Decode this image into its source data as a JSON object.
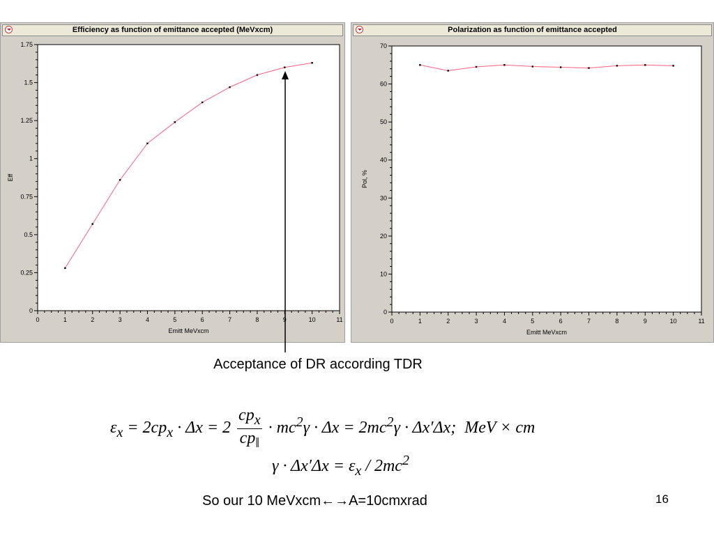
{
  "chart_data": [
    {
      "type": "line",
      "title": "Efficiency as function of emittance accepted (MeVxcm)",
      "xlabel": "Emitt MeVxcm",
      "ylabel": "Eff",
      "xlim": [
        0,
        11
      ],
      "ylim": [
        0,
        1.75
      ],
      "xticks": [
        "0",
        "1",
        "2",
        "3",
        "4",
        "5",
        "6",
        "7",
        "8",
        "9",
        "10",
        "11"
      ],
      "yticks": [
        "0",
        "0.25",
        "0.5",
        "0.75",
        "1",
        "1.25",
        "1.5",
        "1.75"
      ],
      "grid": false,
      "series": [
        {
          "x": [
            1,
            2,
            3,
            4,
            5,
            6,
            7,
            8,
            9,
            10
          ],
          "values": [
            0.28,
            0.57,
            0.86,
            1.1,
            1.24,
            1.37,
            1.47,
            1.55,
            1.6,
            1.63
          ],
          "color": "#ff6080"
        }
      ]
    },
    {
      "type": "line",
      "title": "Polarization as function of emittance accepted",
      "xlabel": "Emitt MeVxcm",
      "ylabel": "Pol, %",
      "xlim": [
        0,
        11
      ],
      "ylim": [
        0,
        70
      ],
      "xticks": [
        "0",
        "1",
        "2",
        "3",
        "4",
        "5",
        "6",
        "7",
        "8",
        "9",
        "10",
        "11"
      ],
      "yticks": [
        "0",
        "10",
        "20",
        "30",
        "40",
        "50",
        "60",
        "70"
      ],
      "grid": false,
      "series": [
        {
          "x": [
            1,
            2,
            3,
            4,
            5,
            6,
            7,
            8,
            9,
            10
          ],
          "values": [
            65,
            63.5,
            64.5,
            65,
            64.6,
            64.4,
            64.2,
            64.8,
            65,
            64.8
          ],
          "color": "#ff6080"
        }
      ]
    }
  ],
  "annotation": {
    "caption": "Acceptance of DR according TDR",
    "arrow_target": {
      "x": 9,
      "y": 1.6
    }
  },
  "formulas": {
    "line1": "εx = 2cpx · Δx = 2 (cpx / cp‖) · mc²γ · Δx = 2mc²γ · Δx′Δx;  MeV × cm",
    "line2": "γ · Δx′Δx = εx / 2mc²"
  },
  "footer": {
    "note_prefix": "So our 10 MeVxcm",
    "note_arrows": "←→",
    "note_suffix": "A=10cmxrad",
    "page_number": "16"
  }
}
